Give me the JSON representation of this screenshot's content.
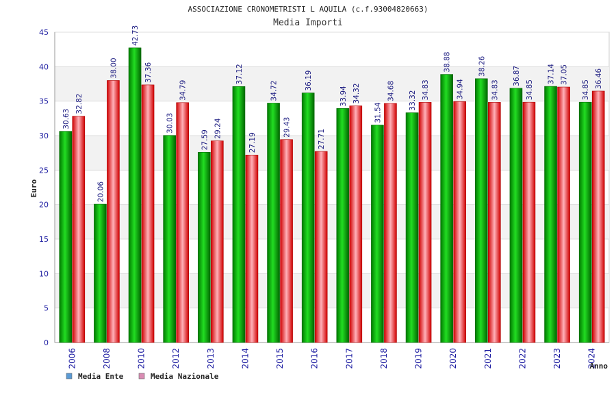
{
  "chart_data": {
    "type": "bar",
    "title": "ASSOCIAZIONE CRONOMETRISTI L AQUILA (c.f.93004820663)",
    "subtitle": "Media Importi",
    "xlabel": "Anno",
    "ylabel": "Euro",
    "ylim": [
      0,
      45
    ],
    "yticks": [
      0,
      5,
      10,
      15,
      20,
      25,
      30,
      35,
      40,
      45
    ],
    "grid": true,
    "categories": [
      "2006",
      "2008",
      "2010",
      "2012",
      "2013",
      "2014",
      "2015",
      "2016",
      "2017",
      "2018",
      "2019",
      "2020",
      "2021",
      "2022",
      "2023",
      "2024"
    ],
    "series": [
      {
        "name": "Media Ente",
        "color": "#00b000",
        "values": [
          30.63,
          20.06,
          42.73,
          30.03,
          27.59,
          37.12,
          34.72,
          36.19,
          33.94,
          31.54,
          33.32,
          38.88,
          38.26,
          36.87,
          37.14,
          34.85
        ],
        "labels": [
          "30.63",
          "20.06",
          "42.73",
          "30.03",
          "27.59",
          "37.12",
          "34.72",
          "36.19",
          "33.94",
          "31.54",
          "33.32",
          "38.88",
          "38.26",
          "36.87",
          "37.14",
          "34.85"
        ]
      },
      {
        "name": "Media Nazionale",
        "color": "#e01010",
        "values": [
          32.82,
          38.0,
          37.36,
          34.79,
          29.24,
          27.19,
          29.43,
          27.71,
          34.32,
          34.68,
          34.83,
          34.94,
          34.83,
          34.85,
          37.05,
          36.46
        ],
        "labels": [
          "32.82",
          "38.00",
          "37.36",
          "34.79",
          "29.24",
          "27.19",
          "29.43",
          "27.71",
          "34.32",
          "34.68",
          "34.83",
          "34.94",
          "34.83",
          "34.85",
          "37.05",
          "36.46"
        ]
      }
    ],
    "legend": [
      {
        "label": "Media Ente",
        "swatch": "#5b9bd5"
      },
      {
        "label": "Media Nazionale",
        "swatch": "#d98cb3"
      }
    ],
    "legend_position": "bottom-left"
  }
}
